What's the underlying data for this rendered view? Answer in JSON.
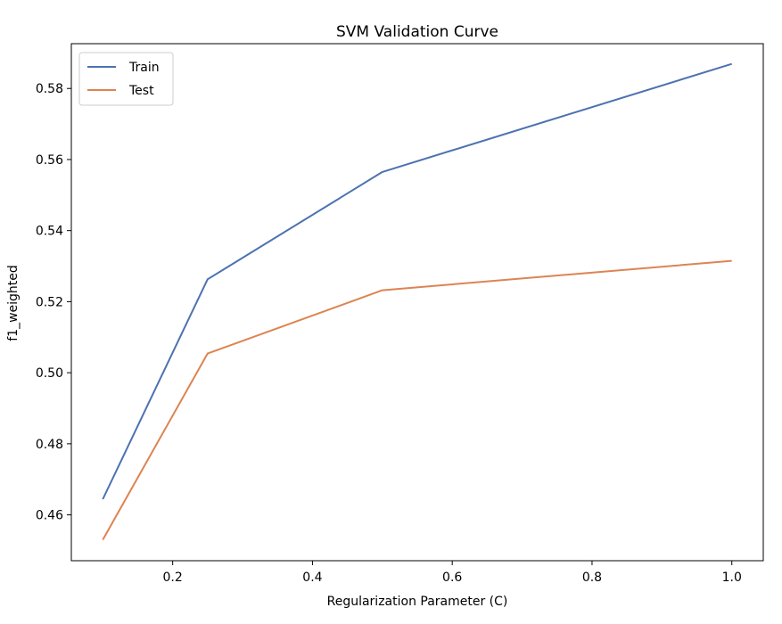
{
  "chart_data": {
    "type": "line",
    "title": "SVM Validation Curve",
    "xlabel": "Regularization Parameter (C)",
    "ylabel": "f1_weighted",
    "x": [
      0.1,
      0.25,
      0.5,
      1.0
    ],
    "xlim": [
      0.055,
      1.045
    ],
    "ylim": [
      0.4471,
      0.5926
    ],
    "xticks": [
      0.2,
      0.4,
      0.6,
      0.8,
      1.0
    ],
    "xtick_labels": [
      "0.2",
      "0.4",
      "0.6",
      "0.8",
      "1.0"
    ],
    "yticks": [
      0.46,
      0.48,
      0.5,
      0.52,
      0.54,
      0.56,
      0.58
    ],
    "ytick_labels": [
      "0.46",
      "0.48",
      "0.50",
      "0.52",
      "0.54",
      "0.56",
      "0.58"
    ],
    "grid": false,
    "legend_position": "top-left",
    "series": [
      {
        "name": "Train",
        "color": "#4c72b0",
        "values": [
          0.4644,
          0.5263,
          0.5565,
          0.5869
        ]
      },
      {
        "name": "Test",
        "color": "#dd8452",
        "values": [
          0.453,
          0.5054,
          0.5232,
          0.5315
        ]
      }
    ]
  }
}
